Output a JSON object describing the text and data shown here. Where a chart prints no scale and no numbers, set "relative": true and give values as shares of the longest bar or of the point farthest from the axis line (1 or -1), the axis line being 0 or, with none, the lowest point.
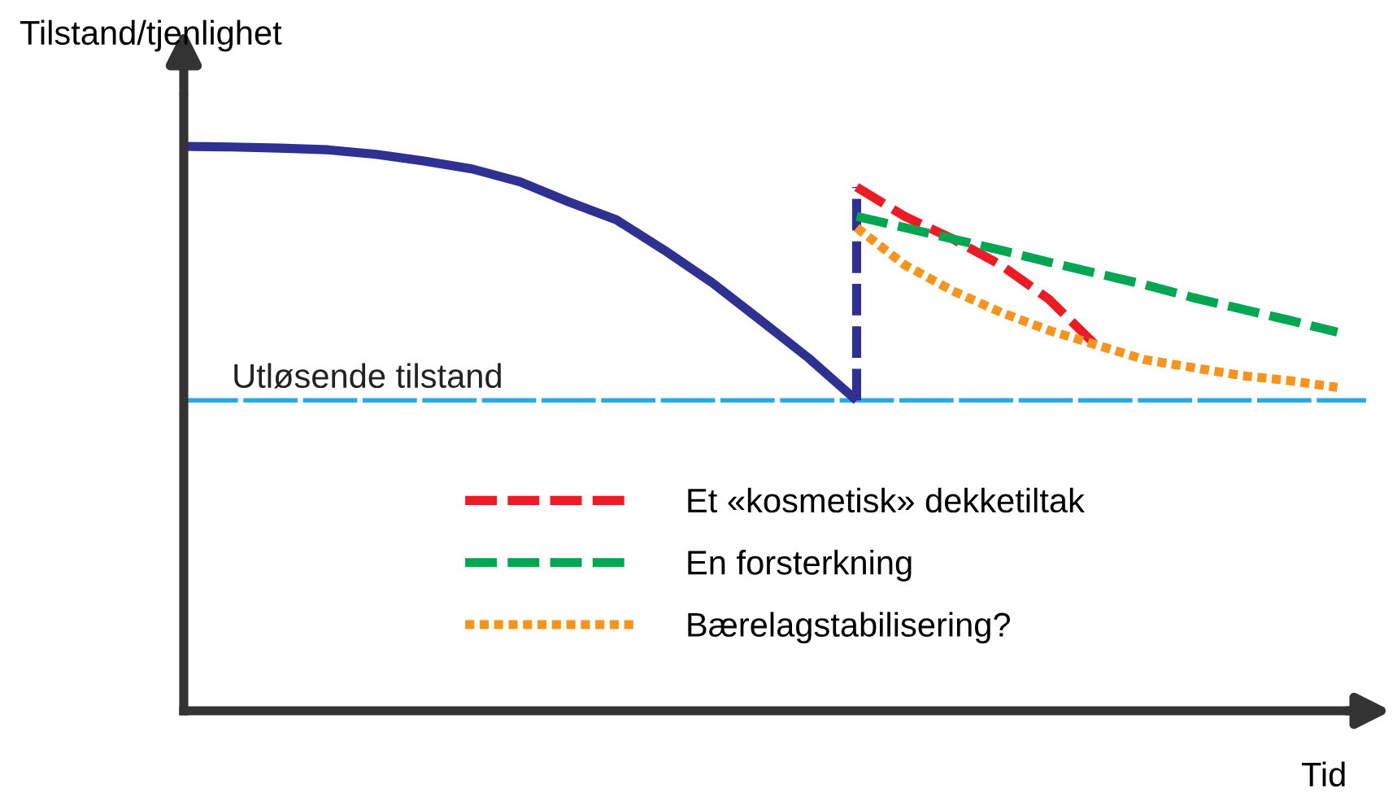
{
  "chart_data": {
    "type": "line",
    "relative": true,
    "xlabel": "Tid",
    "ylabel": "Tilstand/tjenlighet",
    "legend": "bottom",
    "categories": [
      null,
      null,
      null,
      null,
      null,
      null,
      null,
      null,
      null,
      null,
      null,
      null,
      null,
      null,
      null,
      null,
      null,
      null,
      null,
      null,
      null,
      null,
      null,
      null,
      null
    ],
    "series": [
      {
        "color": "#2e3192",
        "line_style": "solid",
        "values": [
          1,
          0.999,
          0.997,
          0.994,
          0.986,
          0.974,
          0.96,
          0.937,
          0.902,
          0.87,
          0.816,
          0.758,
          0.692,
          0.625,
          0.55,
          null,
          null,
          null,
          null,
          null,
          null,
          null,
          null,
          null,
          null
        ]
      },
      {
        "name": "Et «kosmetisk» dekketiltak",
        "color": "#ed1c24",
        "line_style": "dashed",
        "values": [
          null,
          null,
          null,
          null,
          null,
          null,
          null,
          null,
          null,
          null,
          null,
          null,
          null,
          null,
          0.928,
          0.876,
          0.836,
          0.79,
          0.729,
          0.646,
          null,
          null,
          null,
          null,
          null
        ]
      },
      {
        "name": "En forsterkning",
        "color": "#00a651",
        "line_style": "dashed",
        "values": [
          null,
          null,
          null,
          null,
          null,
          null,
          null,
          null,
          null,
          null,
          null,
          null,
          null,
          null,
          0.876,
          0.856,
          0.836,
          0.816,
          0.795,
          0.775,
          0.755,
          0.732,
          0.712,
          0.692,
          0.671
        ]
      },
      {
        "name": "Bærelagstabilisering?",
        "color": "#f7941d",
        "line_style": "dotted",
        "values": [
          null,
          null,
          null,
          null,
          null,
          null,
          null,
          null,
          null,
          null,
          null,
          null,
          null,
          null,
          0.856,
          0.79,
          0.744,
          0.706,
          0.674,
          0.648,
          0.622,
          0.608,
          0.594,
          0.585,
          0.573
        ]
      }
    ],
    "ref_lines": [
      {
        "axis": "y",
        "value": 0.55,
        "label": "Utløsende tilstand",
        "color": "#29abe2",
        "line_style": "dashed"
      }
    ]
  }
}
